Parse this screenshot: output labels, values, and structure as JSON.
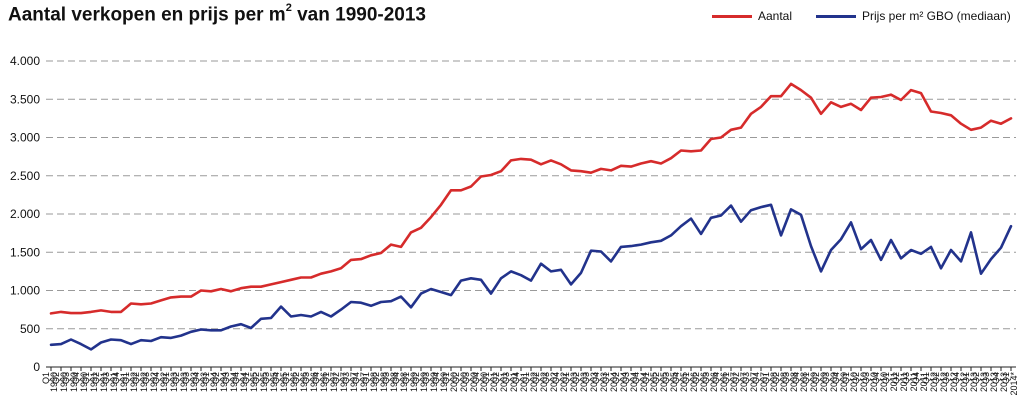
{
  "title_main": "Aantal verkopen en prijs per m",
  "title_sup": "2",
  "title_rest": " van 1990-2013",
  "colors": {
    "aantal": "#d62b2b",
    "prijs": "#22338c",
    "grid": "#9a9a9a"
  },
  "chart_data": {
    "type": "line",
    "ylim": [
      0,
      4000
    ],
    "y_ticks": [
      0,
      500,
      1000,
      1500,
      2000,
      2500,
      3000,
      3500,
      4000
    ],
    "y_tick_labels": [
      "0",
      "500",
      "1.000",
      "1.500",
      "2.000",
      "2.500",
      "3.000",
      "3.500",
      "4.000"
    ],
    "grid": "horizontal dashed",
    "legend_position": "top-right",
    "series": [
      {
        "name": "Aantal",
        "values": [
          700,
          720,
          705,
          705,
          720,
          740,
          720,
          720,
          830,
          820,
          830,
          870,
          910,
          920,
          920,
          1000,
          990,
          1020,
          990,
          1030,
          1050,
          1050,
          1080,
          1110,
          1140,
          1170,
          1170,
          1220,
          1250,
          1290,
          1400,
          1410,
          1460,
          1490,
          1600,
          1570,
          1760,
          1820,
          1960,
          2120,
          2310,
          2310,
          2360,
          2490,
          2510,
          2560,
          2700,
          2720,
          2710,
          2650,
          2700,
          2650,
          2570,
          2560,
          2540,
          2590,
          2570,
          2630,
          2620,
          2660,
          2690,
          2660,
          2730,
          2830,
          2820,
          2830,
          2980,
          3000,
          3100,
          3130,
          3310,
          3400,
          3540,
          3540,
          3700,
          3620,
          3520,
          3310,
          3460,
          3400,
          3440,
          3360,
          3520,
          3530,
          3560,
          3490,
          3620,
          3580,
          3340,
          3320,
          3290,
          3180,
          3100,
          3130,
          3220,
          3180,
          3250
        ]
      },
      {
        "name": "Prijs per m² GBO (mediaan)",
        "values": [
          290,
          300,
          360,
          300,
          230,
          320,
          360,
          350,
          300,
          350,
          340,
          390,
          380,
          410,
          460,
          490,
          480,
          480,
          530,
          560,
          510,
          630,
          640,
          790,
          660,
          680,
          660,
          720,
          660,
          750,
          850,
          840,
          800,
          850,
          860,
          920,
          780,
          960,
          1020,
          980,
          940,
          1130,
          1160,
          1140,
          960,
          1160,
          1250,
          1200,
          1130,
          1350,
          1250,
          1270,
          1080,
          1230,
          1520,
          1510,
          1380,
          1570,
          1580,
          1600,
          1630,
          1650,
          1720,
          1840,
          1940,
          1740,
          1950,
          1980,
          2110,
          1900,
          2050,
          2090,
          2120,
          1720,
          2060,
          1990,
          1580,
          1250,
          1530,
          1670,
          1890,
          1540,
          1660,
          1400,
          1660,
          1420,
          1530,
          1480,
          1570,
          1290,
          1530,
          1380,
          1760,
          1220,
          1410,
          1560,
          1840
        ]
      }
    ]
  }
}
